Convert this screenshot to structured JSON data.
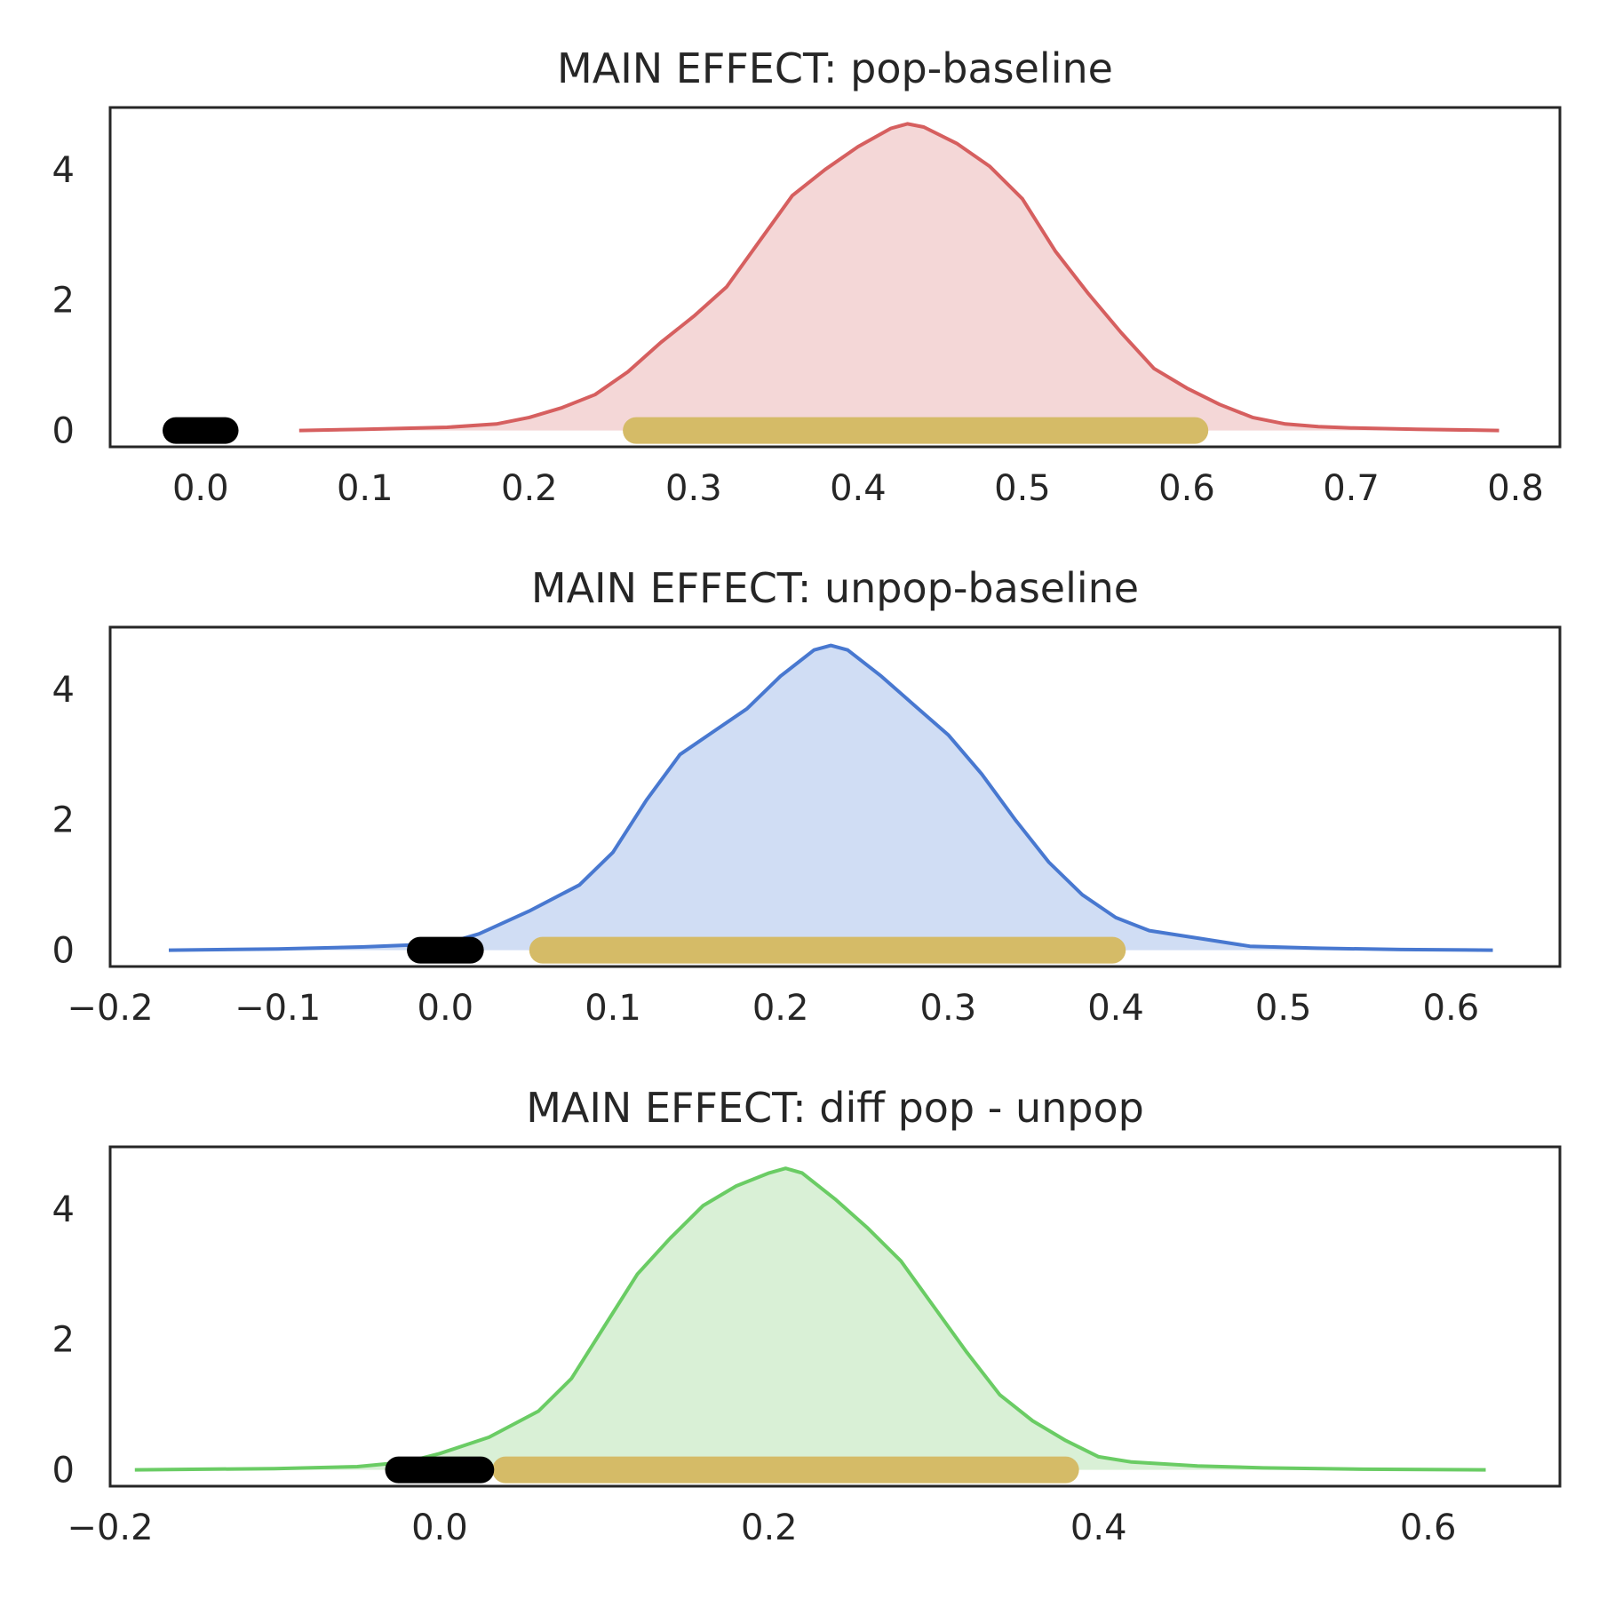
{
  "chart_data": [
    {
      "type": "area",
      "title": "MAIN EFFECT: pop-baseline",
      "xlabel": "",
      "ylabel": "",
      "xlim": [
        -0.055,
        0.827
      ],
      "ylim": [
        -0.25,
        4.95
      ],
      "xticks": [
        0.0,
        0.1,
        0.2,
        0.3,
        0.4,
        0.5,
        0.6,
        0.7,
        0.8
      ],
      "xtick_labels": [
        "0.0",
        "0.1",
        "0.2",
        "0.3",
        "0.4",
        "0.5",
        "0.6",
        "0.7",
        "0.8"
      ],
      "yticks": [
        0,
        2,
        4
      ],
      "ytick_labels": [
        "0",
        "2",
        "4"
      ],
      "grid": false,
      "line_color": "#d65f5f",
      "fill_color": "#f4d7d7",
      "density": {
        "x": [
          0.06,
          0.1,
          0.15,
          0.18,
          0.2,
          0.22,
          0.24,
          0.26,
          0.28,
          0.3,
          0.32,
          0.34,
          0.36,
          0.38,
          0.4,
          0.42,
          0.43,
          0.44,
          0.46,
          0.48,
          0.5,
          0.52,
          0.54,
          0.56,
          0.58,
          0.6,
          0.62,
          0.64,
          0.66,
          0.68,
          0.7,
          0.74,
          0.79
        ],
        "y": [
          0.0,
          0.02,
          0.05,
          0.1,
          0.2,
          0.35,
          0.55,
          0.9,
          1.35,
          1.75,
          2.2,
          2.9,
          3.6,
          4.0,
          4.35,
          4.63,
          4.7,
          4.65,
          4.4,
          4.05,
          3.55,
          2.75,
          2.1,
          1.5,
          0.95,
          0.65,
          0.4,
          0.2,
          0.1,
          0.06,
          0.04,
          0.02,
          0.0
        ]
      },
      "hdi": [
        0.265,
        0.605
      ],
      "rope": [
        -0.015,
        0.015
      ]
    },
    {
      "type": "area",
      "title": "MAIN EFFECT: unpop-baseline",
      "xlabel": "",
      "ylabel": "",
      "xlim": [
        -0.2,
        0.665
      ],
      "ylim": [
        -0.25,
        4.95
      ],
      "xticks": [
        -0.2,
        -0.1,
        0.0,
        0.1,
        0.2,
        0.3,
        0.4,
        0.5,
        0.6
      ],
      "xtick_labels": [
        "−0.2",
        "−0.1",
        "0.0",
        "0.1",
        "0.2",
        "0.3",
        "0.4",
        "0.5",
        "0.6"
      ],
      "yticks": [
        0,
        2,
        4
      ],
      "ytick_labels": [
        "0",
        "2",
        "4"
      ],
      "grid": false,
      "line_color": "#4878d0",
      "fill_color": "#d0ddf4",
      "density": {
        "x": [
          -0.165,
          -0.1,
          -0.05,
          0.0,
          0.02,
          0.05,
          0.08,
          0.1,
          0.12,
          0.14,
          0.16,
          0.18,
          0.2,
          0.22,
          0.23,
          0.24,
          0.26,
          0.28,
          0.3,
          0.32,
          0.34,
          0.36,
          0.38,
          0.4,
          0.42,
          0.45,
          0.48,
          0.52,
          0.57,
          0.625
        ],
        "y": [
          0.0,
          0.02,
          0.05,
          0.1,
          0.25,
          0.6,
          1.0,
          1.5,
          2.3,
          3.0,
          3.35,
          3.7,
          4.2,
          4.6,
          4.67,
          4.6,
          4.2,
          3.75,
          3.3,
          2.7,
          2.0,
          1.35,
          0.85,
          0.5,
          0.3,
          0.18,
          0.06,
          0.03,
          0.01,
          0.0
        ]
      },
      "hdi": [
        0.058,
        0.398
      ],
      "rope": [
        -0.015,
        0.015
      ]
    },
    {
      "type": "area",
      "title": "MAIN EFFECT: diff pop - unpop",
      "xlabel": "",
      "ylabel": "",
      "xlim": [
        -0.2,
        0.68
      ],
      "ylim": [
        -0.25,
        4.95
      ],
      "xticks": [
        -0.2,
        0.0,
        0.2,
        0.4,
        0.6
      ],
      "xtick_labels": [
        "−0.2",
        "0.0",
        "0.2",
        "0.4",
        "0.6"
      ],
      "yticks": [
        0,
        2,
        4
      ],
      "ytick_labels": [
        "0",
        "2",
        "4"
      ],
      "grid": false,
      "line_color": "#6acc64",
      "fill_color": "#d9f0d6",
      "density": {
        "x": [
          -0.185,
          -0.1,
          -0.05,
          -0.02,
          0.0,
          0.03,
          0.06,
          0.08,
          0.1,
          0.12,
          0.14,
          0.16,
          0.18,
          0.2,
          0.21,
          0.22,
          0.24,
          0.26,
          0.28,
          0.3,
          0.32,
          0.34,
          0.36,
          0.38,
          0.4,
          0.42,
          0.46,
          0.5,
          0.56,
          0.635
        ],
        "y": [
          0.0,
          0.02,
          0.05,
          0.12,
          0.25,
          0.5,
          0.9,
          1.4,
          2.2,
          3.0,
          3.55,
          4.05,
          4.35,
          4.55,
          4.62,
          4.55,
          4.15,
          3.7,
          3.2,
          2.5,
          1.8,
          1.15,
          0.75,
          0.45,
          0.2,
          0.12,
          0.06,
          0.03,
          0.01,
          0.0
        ]
      },
      "hdi": [
        0.04,
        0.38
      ],
      "rope": [
        -0.025,
        0.025
      ]
    }
  ],
  "colors": {
    "hdi_bar": "#d5bb67",
    "rope_bar": "#000000",
    "frame": "#262626",
    "text": "#262626"
  }
}
